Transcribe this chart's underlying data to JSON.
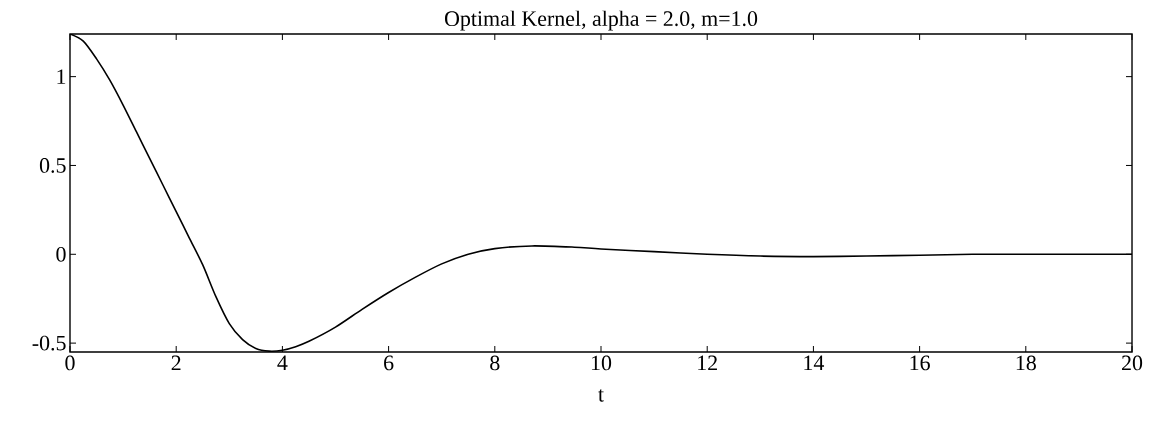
{
  "chart_data": {
    "type": "line",
    "title": "Optimal Kernel, alpha = 2.0, m=1.0",
    "xlabel": "t",
    "x": [
      0,
      0.25,
      0.5,
      0.75,
      1,
      1.25,
      1.5,
      1.75,
      2,
      2.25,
      2.5,
      2.75,
      3,
      3.25,
      3.5,
      3.75,
      4,
      4.25,
      4.5,
      5,
      5.5,
      6,
      6.5,
      7,
      7.5,
      8,
      8.7,
      9.5,
      10,
      11,
      12,
      13,
      14,
      15,
      16,
      17,
      18,
      19,
      20
    ],
    "series": [
      {
        "color": "#000000",
        "values": [
          1.24,
          1.2,
          1.1,
          0.98,
          0.84,
          0.69,
          0.54,
          0.39,
          0.24,
          0.09,
          -0.06,
          -0.24,
          -0.39,
          -0.48,
          -0.53,
          -0.545,
          -0.54,
          -0.52,
          -0.49,
          -0.41,
          -0.31,
          -0.215,
          -0.13,
          -0.054,
          0.0,
          0.032,
          0.047,
          0.04,
          0.03,
          0.015,
          0.0,
          -0.01,
          -0.013,
          -0.01,
          -0.005,
          0.0,
          0.0,
          0.0,
          0.0
        ]
      }
    ],
    "xlim": [
      0,
      20
    ],
    "ylim": [
      -0.55,
      1.24
    ],
    "xticks": [
      0,
      2,
      4,
      6,
      8,
      10,
      12,
      14,
      16,
      18,
      20
    ],
    "yticks": [
      -0.5,
      0,
      0.5,
      1
    ],
    "grid": false,
    "legend": false,
    "marker": "none",
    "line_style": "solid"
  }
}
